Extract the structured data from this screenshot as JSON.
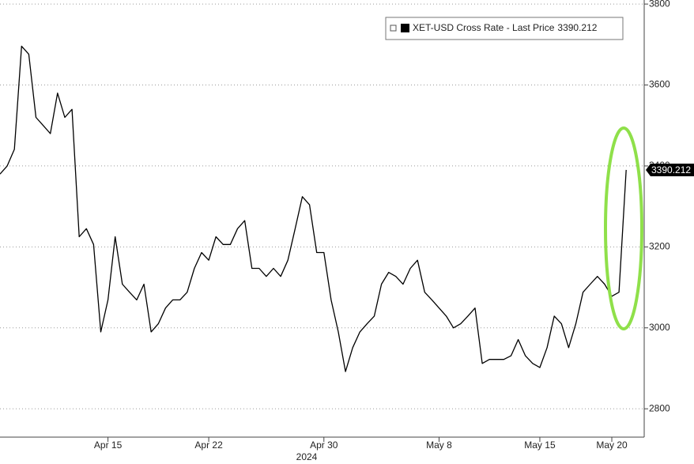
{
  "chart_data": {
    "type": "line",
    "series": [
      {
        "name": "XET-USD Cross Rate - Last Price",
        "color": "#000000",
        "values": [
          3380,
          3400,
          3441,
          3696,
          3676,
          3520,
          3500,
          3480,
          3580,
          3520,
          3540,
          3225,
          3245,
          3206,
          2990,
          3069,
          3225,
          3108,
          3088,
          3069,
          3108,
          2990,
          3010,
          3049,
          3069,
          3069,
          3088,
          3147,
          3186,
          3167,
          3225,
          3206,
          3206,
          3245,
          3265,
          3147,
          3147,
          3127,
          3147,
          3127,
          3167,
          3245,
          3324,
          3304,
          3186,
          3186,
          3069,
          2990,
          2892,
          2951,
          2990,
          3010,
          3029,
          3108,
          3137,
          3127,
          3108,
          3147,
          3167,
          3088,
          3069,
          3049,
          3029,
          3000,
          3010,
          3029,
          3049,
          2912,
          2922,
          2922,
          2922,
          2931,
          2971,
          2931,
          2912,
          2902,
          2951,
          3029,
          3010,
          2951,
          3010,
          3088,
          3108,
          3127,
          3108,
          3078,
          3088,
          3390.212
        ]
      }
    ],
    "xlim": [
      0,
      89.5
    ],
    "xticks": [
      {
        "value": 15,
        "label": "Apr 15"
      },
      {
        "value": 29,
        "label": "Apr 22"
      },
      {
        "value": 45,
        "label": "Apr 30"
      },
      {
        "value": 61,
        "label": "May 8"
      },
      {
        "value": 75,
        "label": "May 15"
      },
      {
        "value": 85,
        "label": "May 20"
      }
    ],
    "xlabel": "2024",
    "ylim": [
      2730,
      3810
    ],
    "yticks": [
      2800,
      3000,
      3200,
      3400,
      3600,
      3800
    ],
    "grid": true
  }
}
